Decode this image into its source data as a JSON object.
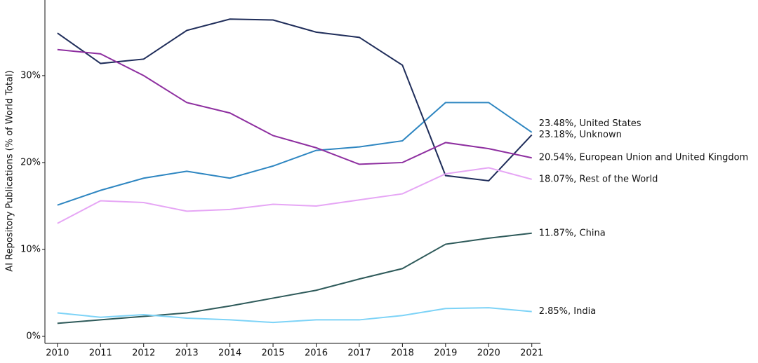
{
  "chart_data": {
    "type": "line",
    "y_label": "AI Repository Publications (% of World Total)",
    "x": [
      2010,
      2011,
      2012,
      2013,
      2014,
      2015,
      2016,
      2017,
      2018,
      2019,
      2020,
      2021
    ],
    "xlim": [
      2009.71,
      2021.2
    ],
    "xticks": [
      2010,
      2011,
      2012,
      2013,
      2014,
      2015,
      2016,
      2017,
      2018,
      2019,
      2020,
      2021
    ],
    "ylim": [
      0,
      38.7
    ],
    "yticks": [
      {
        "value": 0,
        "label": "0%"
      },
      {
        "value": 10,
        "label": "10%"
      },
      {
        "value": 20,
        "label": "20%"
      },
      {
        "value": 30,
        "label": "30%"
      }
    ],
    "series": [
      {
        "name": "United States",
        "color": "#2e86c1",
        "values": [
          15.1,
          16.8,
          18.2,
          19.0,
          18.2,
          19.6,
          21.4,
          21.8,
          22.5,
          26.9,
          26.9,
          23.48
        ],
        "value_labels": [
          null,
          null,
          null,
          null,
          null,
          null,
          null,
          null,
          null,
          null,
          null,
          "23.48%, United States"
        ]
      },
      {
        "name": "Unknown",
        "color": "#1f2d5a",
        "values": [
          34.9,
          31.4,
          31.9,
          35.2,
          36.5,
          36.4,
          35.0,
          34.4,
          31.2,
          18.5,
          17.9,
          23.18
        ],
        "value_labels": [
          null,
          null,
          null,
          null,
          null,
          null,
          null,
          null,
          null,
          null,
          null,
          "23.18%, Unknown"
        ]
      },
      {
        "name": "European Union and United Kingdom",
        "color": "#8e2fa0",
        "values": [
          33.0,
          32.5,
          30.0,
          26.9,
          25.7,
          23.1,
          21.7,
          19.8,
          20.0,
          22.3,
          21.6,
          20.54
        ],
        "value_labels": [
          null,
          null,
          null,
          null,
          null,
          null,
          null,
          null,
          null,
          null,
          null,
          "20.54%, European Union and United Kingdom"
        ]
      },
      {
        "name": "Rest of the World",
        "color": "#e6a6f5",
        "values": [
          13.0,
          15.6,
          15.4,
          14.4,
          14.6,
          15.2,
          15.0,
          15.7,
          16.4,
          18.7,
          19.4,
          18.07
        ],
        "value_labels": [
          null,
          null,
          null,
          null,
          null,
          null,
          null,
          null,
          null,
          null,
          null,
          "18.07%, Rest of the World"
        ]
      },
      {
        "name": "China",
        "color": "#2e5a5a",
        "values": [
          1.5,
          1.9,
          2.3,
          2.7,
          3.5,
          4.4,
          5.3,
          6.6,
          7.8,
          10.6,
          11.3,
          11.87
        ],
        "value_labels": [
          null,
          null,
          null,
          null,
          null,
          null,
          null,
          null,
          null,
          null,
          null,
          "11.87%, China"
        ]
      },
      {
        "name": "India",
        "color": "#7dd3f7",
        "values": [
          2.7,
          2.2,
          2.5,
          2.1,
          1.9,
          1.6,
          1.9,
          1.9,
          2.4,
          3.2,
          3.3,
          2.85
        ],
        "value_labels": [
          null,
          null,
          null,
          null,
          null,
          null,
          null,
          null,
          null,
          null,
          null,
          "2.85%, India"
        ]
      }
    ]
  }
}
